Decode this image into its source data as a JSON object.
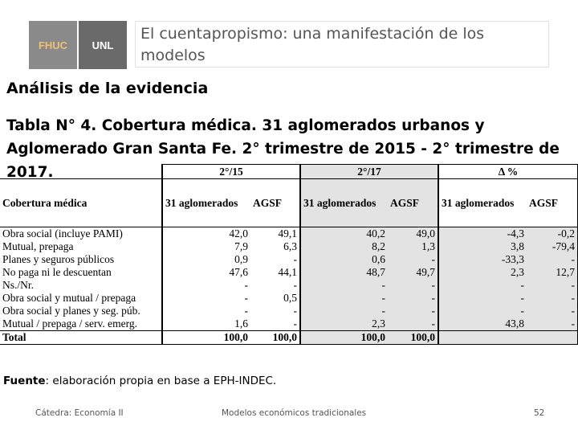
{
  "logos": {
    "fhuc": "FHUC",
    "unl": "UNL"
  },
  "slide_title": "El cuentapropismo: una manifestación de los modelos",
  "section_heading": "Análisis de la evidencia",
  "table_caption": "Tabla N° 4. Cobertura médica. 31 aglomerados urbanos y Aglomerado Gran Santa Fe. 2° trimestre de 2015 - 2° trimestre de 2017.",
  "table": {
    "period_headers": [
      "2°/15",
      "2°/17",
      "Δ %"
    ],
    "row_header": "Cobertura médica",
    "column_headers": [
      "31 aglomerados",
      "AGSF",
      "31 aglomerados",
      "AGSF",
      "31 aglomerados",
      "AGSF"
    ],
    "rows": [
      {
        "label": "Obra social (incluye PAMI)",
        "values": [
          "42,0",
          "49,1",
          "40,2",
          "49,0",
          "-4,3",
          "-0,2"
        ]
      },
      {
        "label": "Mutual, prepaga",
        "values": [
          "7,9",
          "6,3",
          "8,2",
          "1,3",
          "3,8",
          "-79,4"
        ]
      },
      {
        "label": "Planes y seguros públicos",
        "values": [
          "0,9",
          "-",
          "0,6",
          "-",
          "-33,3",
          "-"
        ]
      },
      {
        "label": "No paga ni le descuentan",
        "values": [
          "47,6",
          "44,1",
          "48,7",
          "49,7",
          "2,3",
          "12,7"
        ]
      },
      {
        "label": "Ns./Nr.",
        "values": [
          "-",
          "-",
          "-",
          "-",
          "-",
          "-"
        ]
      },
      {
        "label": "Obra social y mutual / prepaga",
        "values": [
          "-",
          "0,5",
          "-",
          "-",
          "-",
          "-"
        ]
      },
      {
        "label": "Obra social y planes y seg. púb.",
        "values": [
          "-",
          "-",
          "-",
          "-",
          "-",
          "-"
        ]
      },
      {
        "label": "Mutual / prepaga / serv. emerg.",
        "values": [
          "1,6",
          "-",
          "2,3",
          "-",
          "43,8",
          "-"
        ]
      }
    ],
    "total": {
      "label": "Total",
      "values": [
        "100,0",
        "100,0",
        "100,0",
        "100,0"
      ]
    }
  },
  "source": {
    "label": "Fuente",
    "text": ": elaboración propia en base a EPH-INDEC."
  },
  "footer": {
    "left": "Cátedra: Economía II",
    "center": "Modelos económicos tradicionales",
    "page": "52"
  }
}
